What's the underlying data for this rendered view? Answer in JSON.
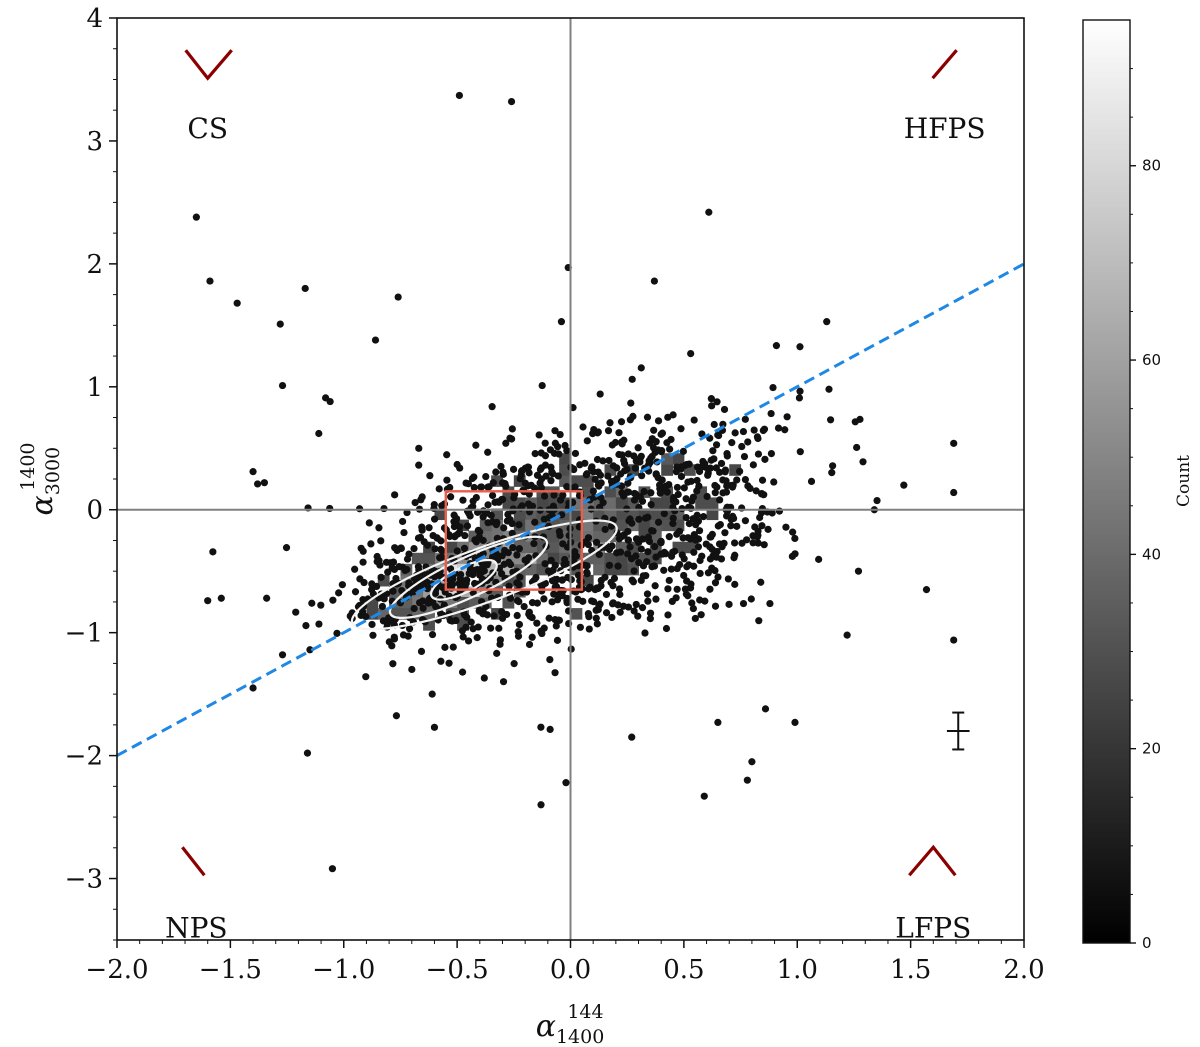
{
  "chart_data": {
    "type": "scatter",
    "title": "",
    "xlabel": {
      "base": "α",
      "sup": "144",
      "sub": "1400"
    },
    "ylabel": {
      "base": "α",
      "sup": "1400",
      "sub": "3000"
    },
    "xlim": [
      -2.0,
      2.0
    ],
    "ylim": [
      -3.5,
      4.0
    ],
    "x_ticks": [
      -2.0,
      -1.5,
      -1.0,
      -0.5,
      0.0,
      0.5,
      1.0,
      1.5,
      2.0
    ],
    "x_tick_labels": [
      "−2.0",
      "−1.5",
      "−1.0",
      "−0.5",
      "0.0",
      "0.5",
      "1.0",
      "1.5",
      "2.0"
    ],
    "y_ticks": [
      -3,
      -2,
      -1,
      0,
      1,
      2,
      3,
      4
    ],
    "y_tick_labels": [
      "−3",
      "−2",
      "−1",
      "0",
      "1",
      "2",
      "3",
      "4"
    ],
    "grid": false,
    "reference_lines": {
      "vertical_x": 0.0,
      "horizontal_y": 0.0,
      "color": "#808080"
    },
    "fit_line": {
      "slope": 1.0,
      "intercept": 0.0,
      "color": "#1f88e5",
      "style": "dashed"
    },
    "highlight_box": {
      "x": [
        -0.55,
        0.05
      ],
      "y": [
        -0.65,
        0.15
      ],
      "color": "#e8604c"
    },
    "density_peak": {
      "x": -0.5,
      "y": -0.55
    },
    "colorbar": {
      "label": "Count",
      "range": [
        0,
        95
      ],
      "ticks": [
        0,
        20,
        40,
        60,
        80
      ],
      "tick_labels": [
        "0",
        "20",
        "40",
        "60",
        "80"
      ]
    },
    "corner_labels": [
      {
        "text": "CS",
        "x": -1.6,
        "y": 3.25
      },
      {
        "text": "HFPS",
        "x": 1.65,
        "y": 3.25
      },
      {
        "text": "NPS",
        "x": -1.65,
        "y": -3.25
      },
      {
        "text": "LFPS",
        "x": 1.6,
        "y": -3.25
      }
    ],
    "corner_marker_color": "#8b0000",
    "typical_error": {
      "x": 1.71,
      "y": -1.8,
      "xerr": 0.05,
      "yerr": 0.15
    },
    "outlier_points": [
      {
        "x": -0.49,
        "y": 3.37
      },
      {
        "x": -0.26,
        "y": 3.32
      },
      {
        "x": -1.65,
        "y": 2.38
      },
      {
        "x": 0.61,
        "y": 2.42
      },
      {
        "x": -1.59,
        "y": 1.86
      },
      {
        "x": -1.47,
        "y": 1.68
      },
      {
        "x": -1.17,
        "y": 1.8
      },
      {
        "x": -0.76,
        "y": 1.73
      },
      {
        "x": -1.28,
        "y": 1.51
      },
      {
        "x": -0.01,
        "y": 1.97
      },
      {
        "x": 0.37,
        "y": 1.86
      },
      {
        "x": 1.13,
        "y": 1.53
      },
      {
        "x": -0.86,
        "y": 1.38
      },
      {
        "x": -1.27,
        "y": 1.01
      },
      {
        "x": -1.06,
        "y": 0.88
      },
      {
        "x": -1.08,
        "y": 0.91
      },
      {
        "x": -1.11,
        "y": 0.62
      },
      {
        "x": 1.69,
        "y": 0.54
      },
      {
        "x": 1.69,
        "y": 0.14
      },
      {
        "x": 1.47,
        "y": 0.2
      },
      {
        "x": 1.34,
        "y": 0.0
      },
      {
        "x": 1.27,
        "y": -0.5
      },
      {
        "x": -1.4,
        "y": 0.31
      },
      {
        "x": -1.38,
        "y": 0.21
      },
      {
        "x": -1.35,
        "y": 0.22
      },
      {
        "x": -1.34,
        "y": -0.72
      },
      {
        "x": -1.54,
        "y": -0.72
      },
      {
        "x": -1.6,
        "y": -0.74
      },
      {
        "x": -1.27,
        "y": -1.18
      },
      {
        "x": -1.4,
        "y": -1.45
      },
      {
        "x": -1.16,
        "y": -1.98
      },
      {
        "x": -1.05,
        "y": -2.92
      },
      {
        "x": -0.13,
        "y": -2.4
      },
      {
        "x": -0.02,
        "y": -2.22
      },
      {
        "x": 0.59,
        "y": -2.33
      },
      {
        "x": 0.78,
        "y": -2.2
      },
      {
        "x": 0.27,
        "y": -1.85
      },
      {
        "x": 0.8,
        "y": -2.05
      },
      {
        "x": 1.57,
        "y": -0.65
      },
      {
        "x": 1.69,
        "y": -1.06
      },
      {
        "x": 1.22,
        "y": -1.02
      },
      {
        "x": 0.99,
        "y": -1.73
      },
      {
        "x": 0.65,
        "y": -1.73
      },
      {
        "x": 0.86,
        "y": -1.62
      },
      {
        "x": -0.6,
        "y": -1.77
      },
      {
        "x": -0.61,
        "y": -1.5
      },
      {
        "x": 1.14,
        "y": 0.98
      },
      {
        "x": 1.29,
        "y": 0.39
      },
      {
        "x": -0.04,
        "y": 1.53
      },
      {
        "x": 0.53,
        "y": 1.27
      }
    ]
  }
}
